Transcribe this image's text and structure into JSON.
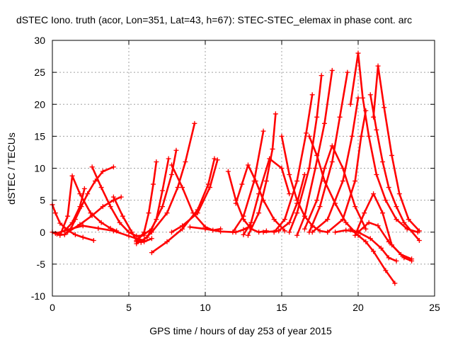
{
  "chart_data": {
    "type": "scatter",
    "title": "dSTEC Iono. truth (acor, Lon=351, Lat=43, h=67): STEC-STEC_elemax in phase cont. arc",
    "xlabel": "GPS time / hours of day 253 of year 2015",
    "ylabel": "dSTEC  / TECUs",
    "xlim": [
      0,
      25
    ],
    "ylim": [
      -10,
      30
    ],
    "xticks": [
      0,
      5,
      10,
      15,
      20,
      25
    ],
    "yticks": [
      -10,
      -5,
      0,
      5,
      10,
      15,
      20,
      25,
      30
    ],
    "xtick_labels": [
      "0",
      "5",
      "10",
      "15",
      "20",
      "25"
    ],
    "ytick_labels": [
      "-10",
      "-5",
      "0",
      "5",
      "10",
      "15",
      "20",
      "25",
      "30"
    ],
    "grid": true,
    "marker": "+",
    "color": "#ff0000",
    "series": [
      {
        "x": [
          0.0,
          0.2,
          0.5,
          1.0,
          1.5,
          2.0,
          2.7
        ],
        "y": [
          4.3,
          3.0,
          1.4,
          0.3,
          -0.4,
          -0.8,
          -1.3
        ]
      },
      {
        "x": [
          0.0,
          0.3,
          0.8,
          1.2,
          1.5,
          1.9,
          2.3,
          2.8,
          3.3,
          4.0
        ],
        "y": [
          0.0,
          -0.3,
          -0.4,
          0.5,
          2.0,
          4.0,
          6.0,
          8.0,
          9.5,
          10.2
        ]
      },
      {
        "x": [
          0.2,
          0.8,
          1.3,
          1.8,
          2.1
        ],
        "y": [
          -0.2,
          0.2,
          1.5,
          4.0,
          6.8
        ]
      },
      {
        "x": [
          0.5,
          1.0,
          1.3,
          1.8,
          2.5,
          3.2,
          3.8,
          4.2
        ],
        "y": [
          -0.5,
          2.5,
          8.8,
          6.0,
          3.0,
          1.5,
          0.6,
          0.2
        ]
      },
      {
        "x": [
          1.0,
          1.8,
          2.6,
          3.3,
          4.0,
          4.5
        ],
        "y": [
          0.0,
          1.2,
          2.6,
          4.0,
          5.0,
          5.5
        ]
      },
      {
        "x": [
          2.6,
          3.2,
          3.8,
          4.4,
          5.0,
          5.5,
          6.0
        ],
        "y": [
          10.2,
          7.0,
          4.0,
          1.5,
          0.0,
          -0.6,
          -0.5
        ]
      },
      {
        "x": [
          1.0,
          2.0,
          3.0,
          4.0,
          5.0,
          5.5,
          6.0
        ],
        "y": [
          0.4,
          1.0,
          0.6,
          0.2,
          -0.6,
          -1.0,
          -1.3
        ]
      },
      {
        "x": [
          4.0,
          4.6,
          5.2,
          5.5,
          6.0,
          6.5
        ],
        "y": [
          5.5,
          2.5,
          0.0,
          -1.3,
          -1.5,
          -1.0
        ]
      },
      {
        "x": [
          5.5,
          6.0,
          6.3,
          6.6,
          6.8
        ],
        "y": [
          -1.5,
          0.0,
          3.0,
          7.5,
          11.0
        ]
      },
      {
        "x": [
          5.5,
          6.2,
          6.8,
          7.2,
          7.6
        ],
        "y": [
          -1.8,
          -0.8,
          2.0,
          6.5,
          11.5
        ]
      },
      {
        "x": [
          5.6,
          6.5,
          7.2,
          7.8,
          8.1
        ],
        "y": [
          -1.0,
          0.5,
          4.0,
          9.0,
          12.8
        ]
      },
      {
        "x": [
          5.8,
          6.5,
          7.5,
          8.2,
          8.7,
          9.3
        ],
        "y": [
          -1.6,
          0.0,
          3.0,
          7.0,
          11.0,
          17.0
        ]
      },
      {
        "x": [
          6.5,
          7.5,
          8.5,
          9.5,
          10.2,
          10.6
        ],
        "y": [
          -3.2,
          -1.5,
          0.5,
          3.5,
          7.5,
          11.5
        ]
      },
      {
        "x": [
          7.8,
          8.5,
          9.5,
          10.3,
          10.8
        ],
        "y": [
          0.0,
          1.0,
          3.0,
          7.0,
          11.3
        ]
      },
      {
        "x": [
          7.8,
          8.5,
          9.2,
          10.0,
          10.5,
          11.0
        ],
        "y": [
          10.5,
          7.0,
          3.0,
          0.8,
          0.3,
          0.5
        ]
      },
      {
        "x": [
          9.0,
          10.0,
          11.0,
          12.0,
          12.5,
          13.0
        ],
        "y": [
          0.8,
          0.5,
          0.1,
          0.0,
          0.4,
          1.0
        ]
      },
      {
        "x": [
          11.5,
          12.0,
          12.5,
          13.0,
          13.5,
          14.0
        ],
        "y": [
          9.5,
          5.0,
          2.0,
          0.5,
          0.0,
          0.2
        ]
      },
      {
        "x": [
          12.0,
          12.4,
          12.8,
          13.3,
          13.8,
          14.5,
          15.2
        ],
        "y": [
          4.5,
          7.5,
          10.5,
          8.0,
          5.0,
          2.0,
          0.2
        ]
      },
      {
        "x": [
          11.8,
          12.5,
          13.2,
          13.8
        ],
        "y": [
          0.0,
          2.5,
          8.0,
          15.8
        ]
      },
      {
        "x": [
          12.5,
          13.0,
          13.5,
          14.2,
          15.0,
          15.5
        ],
        "y": [
          -0.4,
          1.5,
          6.0,
          11.5,
          10.0,
          6.0
        ]
      },
      {
        "x": [
          12.8,
          13.5,
          14.0,
          14.4,
          14.6
        ],
        "y": [
          -0.5,
          3.0,
          8.0,
          13.0,
          18.5
        ]
      },
      {
        "x": [
          13.8,
          14.8,
          15.5,
          16.0,
          16.5
        ],
        "y": [
          0.0,
          0.2,
          1.5,
          4.5,
          9.0
        ]
      },
      {
        "x": [
          15.0,
          15.5,
          16.0,
          16.5,
          17.0,
          17.5,
          18.0
        ],
        "y": [
          15.0,
          9.0,
          5.0,
          2.5,
          1.0,
          0.2,
          0.0
        ]
      },
      {
        "x": [
          14.5,
          15.2,
          16.0,
          16.6,
          17.0
        ],
        "y": [
          0.0,
          2.0,
          8.0,
          15.5,
          21.5
        ]
      },
      {
        "x": [
          15.5,
          16.0,
          16.8,
          17.3,
          17.6
        ],
        "y": [
          0.0,
          3.0,
          10.0,
          18.0,
          24.5
        ]
      },
      {
        "x": [
          16.0,
          16.5,
          17.2,
          17.8,
          18.3
        ],
        "y": [
          -0.5,
          2.5,
          10.0,
          17.0,
          25.3
        ]
      },
      {
        "x": [
          16.8,
          17.5,
          18.3,
          18.8,
          19.3
        ],
        "y": [
          0.0,
          4.0,
          11.0,
          18.0,
          25.0
        ]
      },
      {
        "x": [
          16.8,
          17.3,
          17.8,
          18.5,
          19.2,
          19.8
        ],
        "y": [
          15.0,
          12.0,
          8.0,
          4.5,
          1.5,
          0.0
        ]
      },
      {
        "x": [
          16.5,
          17.3,
          17.8,
          18.3,
          19.0,
          19.8,
          20.5
        ],
        "y": [
          0.5,
          5.0,
          10.0,
          13.5,
          10.0,
          4.0,
          0.5
        ]
      },
      {
        "x": [
          17.0,
          18.0,
          19.0,
          19.6,
          20.0
        ],
        "y": [
          0.0,
          2.0,
          8.0,
          15.0,
          21.0
        ]
      },
      {
        "x": [
          18.0,
          19.0,
          19.8,
          20.2,
          20.5
        ],
        "y": [
          0.0,
          2.0,
          8.0,
          15.0,
          19.0
        ]
      },
      {
        "x": [
          19.5,
          20.0,
          20.3,
          20.7,
          21.2,
          21.8,
          22.5,
          23.2,
          23.9
        ],
        "y": [
          20.0,
          28.0,
          21.0,
          15.0,
          9.0,
          5.0,
          2.0,
          0.5,
          0.0
        ]
      },
      {
        "x": [
          21.0,
          21.3,
          21.7,
          22.2,
          22.7,
          23.3,
          24.0
        ],
        "y": [
          18.0,
          26.0,
          19.5,
          12.0,
          6.0,
          2.0,
          0.2
        ]
      },
      {
        "x": [
          20.8,
          21.2,
          21.6,
          22.0,
          22.5,
          23.0,
          24.0
        ],
        "y": [
          21.5,
          16.0,
          11.0,
          7.0,
          4.0,
          1.5,
          -1.3
        ]
      },
      {
        "x": [
          19.5,
          20.0,
          20.5,
          21.0,
          21.8,
          22.4
        ],
        "y": [
          0.5,
          -0.5,
          -1.5,
          -3.0,
          -6.0,
          -8.0
        ]
      },
      {
        "x": [
          18.5,
          19.2,
          20.0,
          20.8,
          21.5,
          22.0,
          22.5
        ],
        "y": [
          0.0,
          0.3,
          0.0,
          -1.0,
          -2.5,
          -4.0,
          -4.5
        ]
      },
      {
        "x": [
          20.0,
          20.7,
          21.3,
          22.0,
          22.8,
          23.5
        ],
        "y": [
          0.0,
          1.5,
          1.0,
          -1.5,
          -3.5,
          -4.2
        ]
      },
      {
        "x": [
          19.8,
          20.4,
          21.0,
          21.6,
          22.2,
          23.0,
          23.5
        ],
        "y": [
          -0.5,
          3.0,
          6.0,
          3.0,
          -2.0,
          -4.0,
          -4.5
        ]
      }
    ]
  }
}
